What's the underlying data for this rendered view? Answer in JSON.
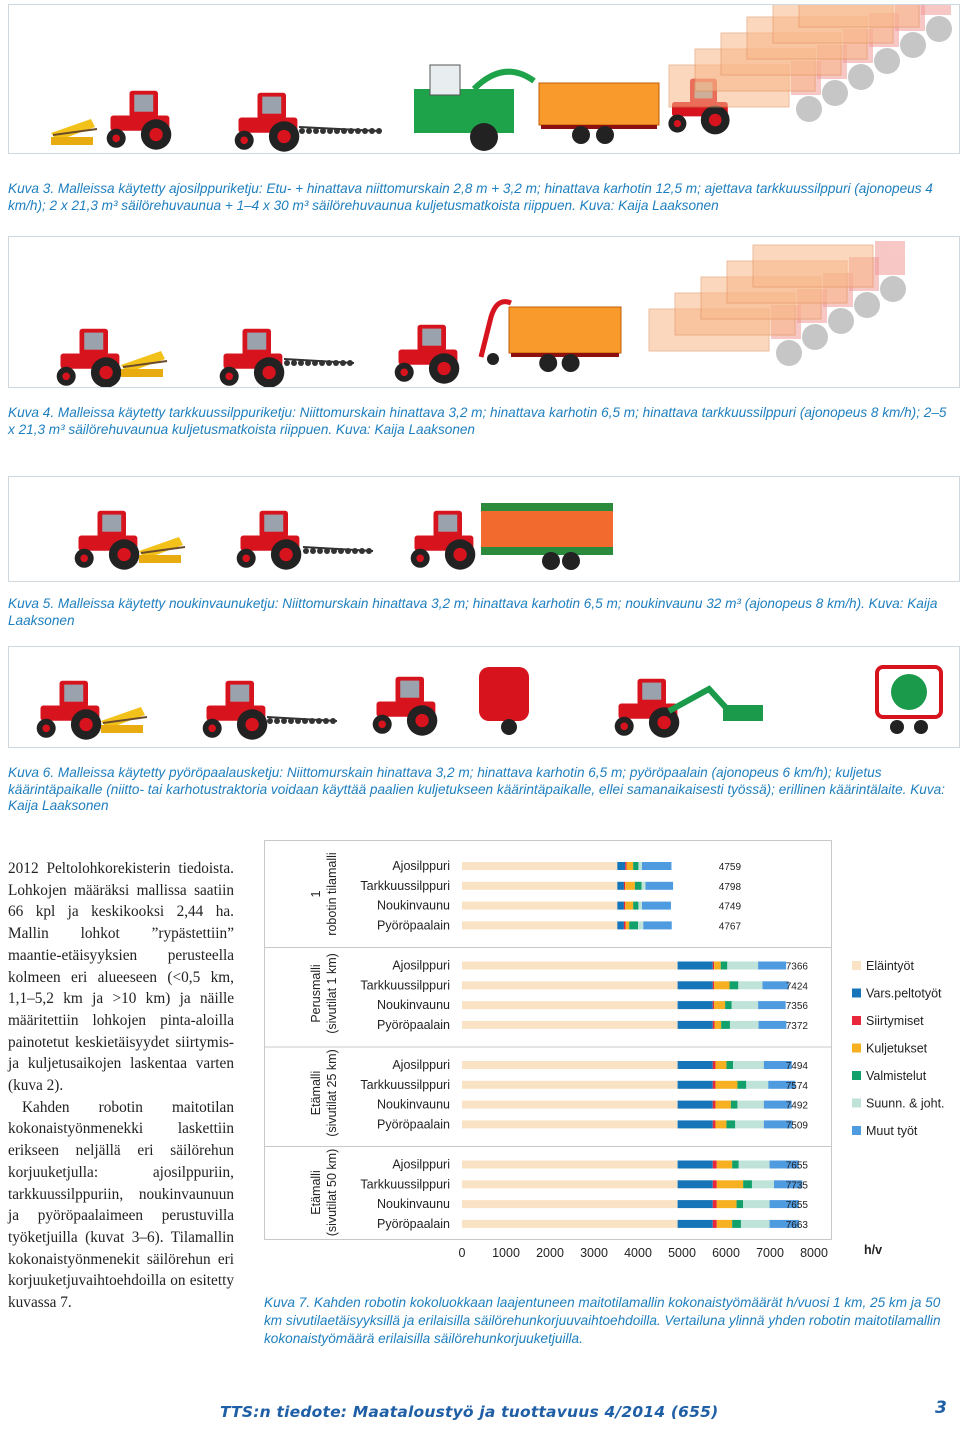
{
  "figures": [
    {
      "label": "Kuva 3.",
      "text": "Malleissa käytetty ajosilppuriketju: Etu- + hinattava niittomurskain 2,8 m + 3,2 m; hinattava karhotin 12,5 m; ajettava tarkkuussilppuri (ajonopeus 4 km/h); 2 x 21,3 m³ säilörehuvaunua + 1–4 x 30 m³ säilörehuvaunua kuljetusmatkoista riippuen. Kuva: Kaija Laaksonen",
      "illustration": "tractor-chain-forage-harvester"
    },
    {
      "label": "Kuva 4.",
      "text": "Malleissa käytetty tarkkuussilppuriketju: Niittomurskain hinattava 3,2 m; hinattava karhotin 6,5 m; hinattava tarkkuussilppuri (ajonopeus 8 km/h); 2–5 x 21,3 m³ säilörehuvaunua kuljetusmatkoista riippuen. Kuva: Kaija Laaksonen",
      "illustration": "tractor-chain-precision-chopper"
    },
    {
      "label": "Kuva 5.",
      "text": "Malleissa käytetty noukinvaunuketju: Niittomurskain hinattava 3,2 m; hinattava karhotin 6,5 m; noukinvaunu 32 m³ (ajonopeus 8 km/h). Kuva: Kaija Laaksonen",
      "illustration": "tractor-chain-loader-wagon"
    },
    {
      "label": "Kuva 6.",
      "text": "Malleissa käytetty pyöröpaalausketju: Niittomurskain hinattava 3,2 m; hinattava karhotin 6,5 m; pyöröpaalain (ajonopeus 6 km/h); kuljetus käärintäpaikalle (niitto- tai karhotustraktoria voidaan käyttää paalien kuljetukseen käärintäpaikalle, ellei samanaikaisesti työssä); erillinen käärintälaite. Kuva: Kaija Laaksonen",
      "illustration": "tractor-chain-round-baler"
    }
  ],
  "body_paragraphs": [
    "2012 Peltolohkorekisterin tiedoista. Lohkojen määräksi mallissa saatiin 66 kpl ja keskikooksi 2,44 ha. Mallin lohkot ”rypästettiin” maantie-etäisyyksien perusteella kolmeen eri alueeseen (<0,5 km, 1,1–5,2 km ja >10 km) ja näille määritettiin lohkojen pinta-aloilla painotetut keskietäisyydet siirtymis- ja kuljetusaikojen laskentaa varten (kuva 2).",
    "Kahden robotin maitotilan kokonaistyönmenekki laskettiin erikseen neljällä eri säilörehun korjuuketjulla: ajosilppuriin, tarkkuussilppuriin, noukinvaunuun ja pyöröpaalaimeen perustuvilla työketjuilla (kuvat 3–6). Tilamallin kokonaistyönmenekit säilörehun eri korjuuketjuvaihtoehdoilla on esitetty kuvassa 7."
  ],
  "chart_data": {
    "type": "bar",
    "orientation": "horizontal",
    "stacked": true,
    "xlabel": "h/v",
    "xlim": [
      0,
      8000
    ],
    "xticks": [
      0,
      1000,
      2000,
      3000,
      4000,
      5000,
      6000,
      7000,
      8000
    ],
    "grid": false,
    "legend_position": "right",
    "groups": [
      {
        "label": "1 robotin tilamalli",
        "rows": [
          {
            "category": "Ajosilppuri",
            "total": "4759",
            "segments": [
              3530,
              180,
              30,
              150,
              120,
              80,
              670
            ]
          },
          {
            "category": "Tarkkuussilppuri",
            "total": "4798",
            "segments": [
              3530,
              150,
              30,
              220,
              150,
              90,
              628
            ]
          },
          {
            "category": "Noukinvaunu",
            "total": "4749",
            "segments": [
              3530,
              150,
              30,
              180,
              120,
              80,
              659
            ]
          },
          {
            "category": "Pyöröpaalain",
            "total": "4767",
            "segments": [
              3530,
              150,
              40,
              80,
              200,
              120,
              647
            ]
          }
        ]
      },
      {
        "label": "Perusmalli (sivutilat 1 km)",
        "rows": [
          {
            "category": "Ajosilppuri",
            "total": "7366",
            "segments": [
              4900,
              800,
              30,
              150,
              150,
              700,
              636
            ]
          },
          {
            "category": "Tarkkuussilppuri",
            "total": "7424",
            "segments": [
              4900,
              800,
              30,
              350,
              200,
              550,
              594
            ]
          },
          {
            "category": "Noukinvaunu",
            "total": "7356",
            "segments": [
              4900,
              800,
              30,
              250,
              150,
              600,
              626
            ]
          },
          {
            "category": "Pyöröpaalain",
            "total": "7372",
            "segments": [
              4900,
              800,
              40,
              150,
              200,
              650,
              632
            ]
          }
        ]
      },
      {
        "label": "Etämalli (sivutilat 25 km)",
        "rows": [
          {
            "category": "Ajosilppuri",
            "total": "7494",
            "segments": [
              4900,
              800,
              60,
              250,
              150,
              700,
              634
            ]
          },
          {
            "category": "Tarkkuussilppuri",
            "total": "7574",
            "segments": [
              4900,
              800,
              60,
              500,
              200,
              500,
              614
            ]
          },
          {
            "category": "Noukinvaunu",
            "total": "7492",
            "segments": [
              4900,
              800,
              60,
              350,
              150,
              600,
              632
            ]
          },
          {
            "category": "Pyöröpaalain",
            "total": "7509",
            "segments": [
              4900,
              800,
              60,
              250,
              200,
              650,
              649
            ]
          }
        ]
      },
      {
        "label": "Etämalli (sivutilat 50 km)",
        "rows": [
          {
            "category": "Ajosilppuri",
            "total": "7655",
            "segments": [
              4900,
              800,
              90,
              350,
              150,
              700,
              665
            ]
          },
          {
            "category": "Tarkkuussilppuri",
            "total": "7735",
            "segments": [
              4900,
              800,
              90,
              600,
              200,
              500,
              645
            ]
          },
          {
            "category": "Noukinvaunu",
            "total": "7655",
            "segments": [
              4900,
              800,
              90,
              450,
              150,
              600,
              665
            ]
          },
          {
            "category": "Pyöröpaalain",
            "total": "7663",
            "segments": [
              4900,
              800,
              90,
              350,
              200,
              650,
              673
            ]
          }
        ]
      }
    ],
    "series": [
      {
        "name": "Eläintyöt",
        "color": "#fae3c4"
      },
      {
        "name": "Vars.peltotyöt",
        "color": "#1675b8"
      },
      {
        "name": "Siirtymiset",
        "color": "#e8273a"
      },
      {
        "name": "Kuljetukset",
        "color": "#f6b022"
      },
      {
        "name": "Valmistelut",
        "color": "#13a16b"
      },
      {
        "name": "Suunn. & joht.",
        "color": "#bfe3d8"
      },
      {
        "name": "Muut työt",
        "color": "#4f9be0"
      }
    ]
  },
  "chart_caption": "Kuva 7. Kahden robotin kokoluokkaan laajentuneen maitotilamallin kokonaistyömäärät h/vuosi 1 km, 25 km ja 50 km sivutilaetäisyyksillä ja erilaisilla säilörehunkorjuuvaihtoehdoilla. Vertailuna ylinnä yhden robotin maitotilamallin kokonaistyömäärä erilaisilla säilörehunkorjuuketjuilla.",
  "footer": {
    "publication": "TTS:n tiedote: Maataloustyö ja tuottavuus 4/2014 (655)",
    "page_number": "3"
  }
}
